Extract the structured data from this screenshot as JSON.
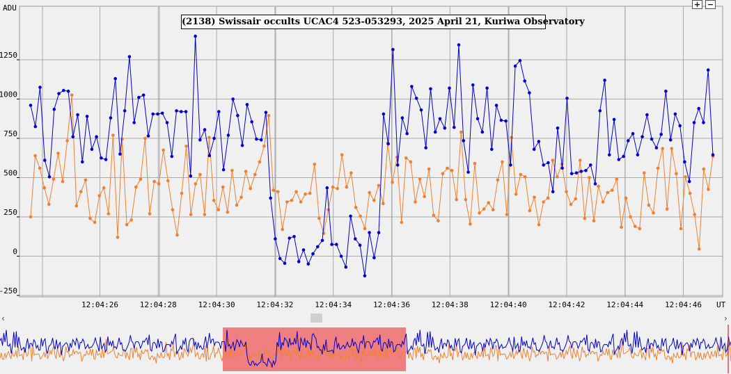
{
  "chart_data": {
    "type": "line",
    "title": "(2138) Swissair occults UCAC4 523-053293, 2025 April 21, Kuriwa Observatory",
    "ylabel": "ADU",
    "xlabel": "UT",
    "ylim": [
      -250,
      1500
    ],
    "yticks": [
      "1250",
      "1000",
      "750",
      "500",
      "250",
      "0",
      "-250"
    ],
    "xtick_labels": [
      "12:04:26",
      "12:04:28",
      "12:04:30",
      "12:04:32",
      "12:04:34",
      "12:04:36",
      "12:04:38",
      "12:04:40",
      "12:04:42",
      "12:04:44",
      "12:04:46"
    ],
    "xlim": [
      0,
      1
    ],
    "grid": true,
    "series": [
      {
        "color": "#0000cc",
        "values": [
          960,
          825,
          1075,
          610,
          505,
          935,
          1035,
          1055,
          1050,
          760,
          900,
          600,
          890,
          680,
          760,
          625,
          615,
          880,
          1130,
          650,
          925,
          1270,
          850,
          1010,
          1025,
          765,
          905,
          905,
          910,
          850,
          635,
          925,
          920,
          920,
          510,
          1400,
          740,
          805,
          640,
          750,
          920,
          550,
          770,
          1000,
          895,
          705,
          965,
          855,
          745,
          740,
          915,
          370,
          110,
          -15,
          -45,
          115,
          125,
          -35,
          40,
          -50,
          15,
          60,
          100,
          435,
          75,
          75,
          0,
          -70,
          255,
          110,
          70,
          -125,
          150,
          -10,
          150,
          905,
          715,
          1315,
          580,
          880,
          780,
          1080,
          1005,
          930,
          690,
          1065,
          790,
          875,
          815,
          1070,
          820,
          1345,
          735,
          535,
          1090,
          875,
          790,
          1070,
          680,
          960,
          865,
          860,
          580,
          1210,
          1245,
          1115,
          1040,
          680,
          730,
          580,
          595,
          410,
          815,
          560,
          1005,
          525,
          530,
          540,
          545,
          580,
          460,
          925,
          1120,
          645,
          870,
          615,
          635,
          735,
          780,
          645,
          760,
          900,
          745,
          690,
          775,
          1050,
          740,
          905,
          830,
          600,
          475,
          850,
          940,
          850,
          1185,
          645
        ],
        "markers": true
      },
      {
        "color": "#f08030",
        "values": [
          250,
          640,
          560,
          435,
          330,
          490,
          655,
          475,
          735,
          1025,
          320,
          410,
          485,
          240,
          215,
          385,
          435,
          270,
          770,
          120,
          745,
          200,
          230,
          440,
          490,
          750,
          270,
          475,
          460,
          675,
          480,
          295,
          135,
          400,
          700,
          265,
          460,
          520,
          265,
          755,
          355,
          295,
          440,
          280,
          545,
          325,
          375,
          540,
          430,
          520,
          600,
          700,
          895,
          420,
          410,
          170,
          345,
          355,
          410,
          345,
          395,
          400,
          585,
          240,
          145,
          295,
          440,
          430,
          645,
          440,
          530,
          310,
          255,
          175,
          405,
          355,
          450,
          335,
          720,
          470,
          630,
          215,
          625,
          600,
          345,
          490,
          380,
          555,
          260,
          225,
          525,
          560,
          545,
          360,
          790,
          360,
          205,
          590,
          275,
          300,
          340,
          295,
          485,
          600,
          265,
          755,
          395,
          520,
          505,
          290,
          375,
          200,
          345,
          370,
          610,
          505,
          585,
          410,
          330,
          365,
          610,
          240,
          500,
          225,
          445,
          345,
          405,
          420,
          490,
          185,
          370,
          250,
          190,
          175,
          530,
          325,
          275,
          560,
          685,
          300,
          685,
          525,
          175,
          505,
          400,
          265,
          45,
          555,
          425,
          635
        ]
      }
    ]
  },
  "ui": {
    "zoom_in_label": "+",
    "zoom_out_label": "−",
    "scroll_left": "‹",
    "scroll_right": "›"
  }
}
